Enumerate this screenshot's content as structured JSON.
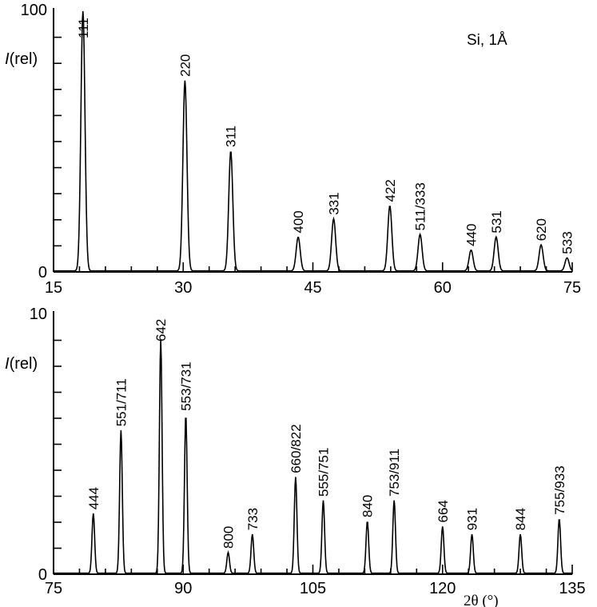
{
  "chart_data": [
    {
      "type": "line",
      "title": "",
      "annotation": "Si, 1Å",
      "ylabel": "I(rel)",
      "xlabel": "",
      "xlim": [
        15,
        75
      ],
      "ylim": [
        0,
        100
      ],
      "xticks": [
        15,
        30,
        45,
        60,
        75
      ],
      "yticks": [
        0,
        100
      ],
      "grid": false,
      "peaks": [
        {
          "x": 18.4,
          "y": 100,
          "label": "111"
        },
        {
          "x": 30.2,
          "y": 73,
          "label": "220"
        },
        {
          "x": 35.5,
          "y": 46,
          "label": "311"
        },
        {
          "x": 43.3,
          "y": 13,
          "label": "400"
        },
        {
          "x": 47.4,
          "y": 20,
          "label": "331"
        },
        {
          "x": 53.9,
          "y": 25,
          "label": "422"
        },
        {
          "x": 57.4,
          "y": 14,
          "label": "511/333"
        },
        {
          "x": 63.3,
          "y": 8,
          "label": "440"
        },
        {
          "x": 66.2,
          "y": 13,
          "label": "531"
        },
        {
          "x": 71.4,
          "y": 10,
          "label": "620"
        },
        {
          "x": 74.4,
          "y": 5,
          "label": "533"
        }
      ]
    },
    {
      "type": "line",
      "title": "",
      "ylabel": "I(rel)",
      "xlabel": "2θ (°)",
      "xlim": [
        75,
        135
      ],
      "ylim": [
        0,
        10
      ],
      "xticks": [
        75,
        90,
        105,
        120,
        135
      ],
      "yticks": [
        0,
        10
      ],
      "grid": false,
      "peaks": [
        {
          "x": 79.6,
          "y": 2.3,
          "label": "444"
        },
        {
          "x": 82.8,
          "y": 5.5,
          "label": "551/711"
        },
        {
          "x": 87.4,
          "y": 9.0,
          "label": "642"
        },
        {
          "x": 90.3,
          "y": 6.1,
          "label": "553/731"
        },
        {
          "x": 95.2,
          "y": 0.8,
          "label": "800"
        },
        {
          "x": 98.0,
          "y": 1.5,
          "label": "733"
        },
        {
          "x": 103.0,
          "y": 3.7,
          "label": "660/822"
        },
        {
          "x": 106.2,
          "y": 2.8,
          "label": "555/751"
        },
        {
          "x": 111.3,
          "y": 2.0,
          "label": "840"
        },
        {
          "x": 114.4,
          "y": 2.8,
          "label": "753/911"
        },
        {
          "x": 120.0,
          "y": 1.8,
          "label": "664"
        },
        {
          "x": 123.4,
          "y": 1.5,
          "label": "931"
        },
        {
          "x": 129.0,
          "y": 1.5,
          "label": "844"
        },
        {
          "x": 133.5,
          "y": 2.1,
          "label": "755/933"
        }
      ]
    }
  ]
}
